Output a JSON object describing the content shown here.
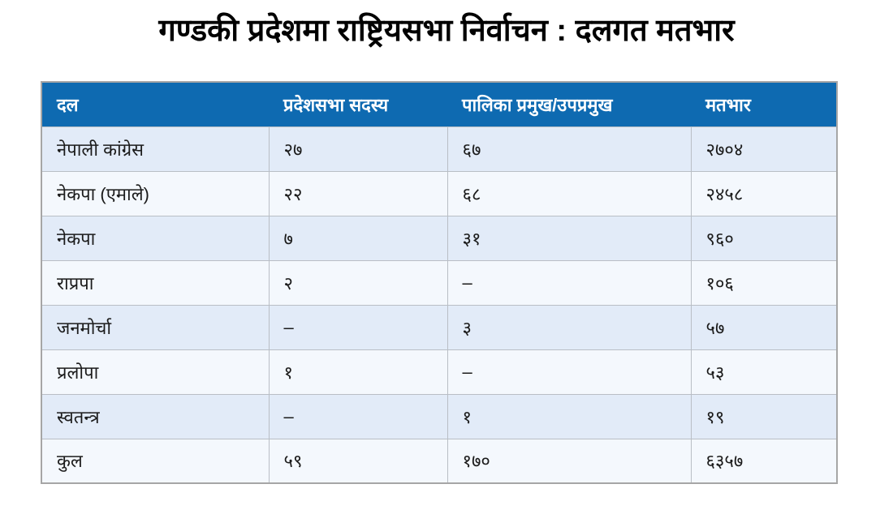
{
  "page": {
    "title": "गण्डकी प्रदेशमा राष्ट्रियसभा निर्वाचन : दलगत मतभार"
  },
  "table": {
    "headers": [
      "दल",
      "प्रदेशसभा सदस्य",
      "पालिका प्रमुख/उपप्रमुख",
      "मतभार"
    ],
    "rows": [
      [
        "नेपाली कांग्रेस",
        "२७",
        "६७",
        "२७०४"
      ],
      [
        "नेकपा (एमाले)",
        "२२",
        "६८",
        "२४५८"
      ],
      [
        "नेकपा",
        "७",
        "३१",
        "९६०"
      ],
      [
        "राप्रपा",
        "२",
        "–",
        "१०६"
      ],
      [
        "जनमोर्चा",
        "–",
        "३",
        "५७"
      ],
      [
        "प्रलोपा",
        "१",
        "–",
        "५३"
      ],
      [
        "स्वतन्त्र",
        "–",
        "१",
        "१९"
      ],
      [
        "कुल",
        "५९",
        "१७०",
        "६३५७"
      ]
    ]
  },
  "chart_data": {
    "type": "table",
    "title": "गण्डकी प्रदेशमा राष्ट्रियसभा निर्वाचन : दलगत मतभार",
    "columns": [
      "दल",
      "प्रदेशसभा सदस्य",
      "पालिका प्रमुख/उपप्रमुख",
      "मतभार"
    ],
    "rows": [
      {
        "party": "नेपाली कांग्रेस",
        "pradesh_sabha_members": 27,
        "palika_chief_deputy": 67,
        "vote_weight": 2704
      },
      {
        "party": "नेकपा (एमाले)",
        "pradesh_sabha_members": 22,
        "palika_chief_deputy": 68,
        "vote_weight": 2458
      },
      {
        "party": "नेकपा",
        "pradesh_sabha_members": 7,
        "palika_chief_deputy": 31,
        "vote_weight": 960
      },
      {
        "party": "राप्रपा",
        "pradesh_sabha_members": 2,
        "palika_chief_deputy": null,
        "vote_weight": 106
      },
      {
        "party": "जनमोर्चा",
        "pradesh_sabha_members": null,
        "palika_chief_deputy": 3,
        "vote_weight": 57
      },
      {
        "party": "प्रलोपा",
        "pradesh_sabha_members": 1,
        "palika_chief_deputy": null,
        "vote_weight": 53
      },
      {
        "party": "स्वतन्त्र",
        "pradesh_sabha_members": null,
        "palika_chief_deputy": 1,
        "vote_weight": 19
      },
      {
        "party": "कुल",
        "pradesh_sabha_members": 59,
        "palika_chief_deputy": 170,
        "vote_weight": 6357
      }
    ],
    "numeral_system": "devanagari",
    "empty_cell_marker": "–"
  },
  "colors": {
    "header_bg": "#0e6ab1",
    "header_text": "#ffffff",
    "row_odd_bg": "#e2ebf8",
    "row_even_bg": "#f4f8fd",
    "outer_border": "#a6a6a6",
    "inner_border": "#b9bec5",
    "body_text": "#1b1b1b",
    "title_text": "#000000"
  }
}
